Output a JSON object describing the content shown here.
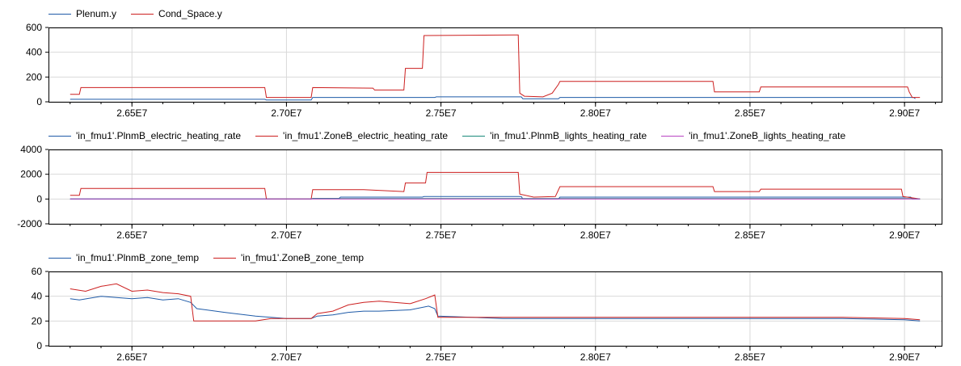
{
  "chart_data": [
    {
      "type": "line",
      "grid": true,
      "legend_placement": "top-left",
      "xlim": [
        26230000,
        29120000
      ],
      "ylim": [
        0,
        600
      ],
      "yticks": [
        0,
        200,
        400,
        600
      ],
      "ytick_labels": [
        "0",
        "200",
        "400",
        "600"
      ],
      "xticks": [
        26500000,
        27000000,
        27500000,
        28000000,
        28500000,
        29000000
      ],
      "xtick_labels": [
        "2.65E7",
        "2.70E7",
        "2.75E7",
        "2.80E7",
        "2.85E7",
        "2.90E7"
      ],
      "series": [
        {
          "name": "Plenum.y",
          "color": "#1f5ba8",
          "points": [
            [
              26300000,
              20
            ],
            [
              26930000,
              20
            ],
            [
              26935000,
              15
            ],
            [
              27080000,
              15
            ],
            [
              27085000,
              35
            ],
            [
              27480000,
              35
            ],
            [
              27485000,
              40
            ],
            [
              27760000,
              40
            ],
            [
              27765000,
              25
            ],
            [
              27880000,
              25
            ],
            [
              27885000,
              35
            ],
            [
              29030000,
              35
            ],
            [
              29035000,
              25
            ]
          ]
        },
        {
          "name": "Cond_Space.y",
          "color": "#cc1f1f",
          "points": [
            [
              26300000,
              60
            ],
            [
              26330000,
              60
            ],
            [
              26335000,
              115
            ],
            [
              26930000,
              115
            ],
            [
              26935000,
              35
            ],
            [
              27080000,
              35
            ],
            [
              27085000,
              115
            ],
            [
              27280000,
              110
            ],
            [
              27285000,
              95
            ],
            [
              27380000,
              95
            ],
            [
              27385000,
              270
            ],
            [
              27440000,
              270
            ],
            [
              27445000,
              535
            ],
            [
              27750000,
              540
            ],
            [
              27755000,
              70
            ],
            [
              27770000,
              45
            ],
            [
              27830000,
              40
            ],
            [
              27860000,
              70
            ],
            [
              27880000,
              140
            ],
            [
              27885000,
              165
            ],
            [
              28380000,
              165
            ],
            [
              28385000,
              80
            ],
            [
              28530000,
              80
            ],
            [
              28535000,
              120
            ],
            [
              29010000,
              120
            ],
            [
              29015000,
              80
            ],
            [
              29025000,
              35
            ],
            [
              29050000,
              35
            ]
          ]
        }
      ]
    },
    {
      "type": "line",
      "grid": true,
      "legend_placement": "top-left",
      "xlim": [
        26230000,
        29120000
      ],
      "ylim": [
        -2000,
        4000
      ],
      "yticks": [
        -2000,
        0,
        2000,
        4000
      ],
      "ytick_labels": [
        "-2000",
        "0",
        "2000",
        "4000"
      ],
      "xticks": [
        26500000,
        27000000,
        27500000,
        28000000,
        28500000,
        29000000
      ],
      "xtick_labels": [
        "2.65E7",
        "2.70E7",
        "2.75E7",
        "2.80E7",
        "2.85E7",
        "2.90E7"
      ],
      "series": [
        {
          "name": "'in_fmu1'.PlnmB_electric_heating_rate",
          "color": "#1f5ba8",
          "points": [
            [
              26300000,
              0
            ],
            [
              27080000,
              0
            ],
            [
              27085000,
              50
            ],
            [
              27170000,
              50
            ],
            [
              27175000,
              150
            ],
            [
              27440000,
              150
            ],
            [
              27445000,
              200
            ],
            [
              27760000,
              200
            ],
            [
              27765000,
              0
            ],
            [
              27880000,
              0
            ],
            [
              27885000,
              150
            ],
            [
              29020000,
              150
            ],
            [
              29025000,
              0
            ],
            [
              29050000,
              0
            ]
          ]
        },
        {
          "name": "'in_fmu1'.ZoneB_electric_heating_rate",
          "color": "#cc1f1f",
          "points": [
            [
              26300000,
              300
            ],
            [
              26330000,
              300
            ],
            [
              26335000,
              850
            ],
            [
              26930000,
              850
            ],
            [
              26935000,
              0
            ],
            [
              27080000,
              0
            ],
            [
              27085000,
              750
            ],
            [
              27250000,
              750
            ],
            [
              27380000,
              600
            ],
            [
              27385000,
              1300
            ],
            [
              27450000,
              1300
            ],
            [
              27455000,
              2150
            ],
            [
              27750000,
              2150
            ],
            [
              27755000,
              400
            ],
            [
              27800000,
              150
            ],
            [
              27870000,
              200
            ],
            [
              27885000,
              1000
            ],
            [
              28380000,
              1000
            ],
            [
              28385000,
              600
            ],
            [
              28530000,
              600
            ],
            [
              28535000,
              800
            ],
            [
              28990000,
              800
            ],
            [
              28995000,
              200
            ],
            [
              29050000,
              0
            ]
          ]
        },
        {
          "name": "'in_fmu1'.PlnmB_lights_heating_rate",
          "color": "#1b8a7a",
          "points": [
            [
              26300000,
              0
            ],
            [
              27080000,
              0
            ],
            [
              27085000,
              40
            ],
            [
              29020000,
              40
            ],
            [
              29025000,
              0
            ],
            [
              29050000,
              0
            ]
          ]
        },
        {
          "name": "'in_fmu1'.ZoneB_lights_heating_rate",
          "color": "#b845c2",
          "points": [
            [
              26300000,
              0
            ],
            [
              29050000,
              0
            ]
          ]
        }
      ]
    },
    {
      "type": "line",
      "grid": true,
      "legend_placement": "top-left",
      "xlim": [
        26230000,
        29120000
      ],
      "ylim": [
        0,
        60
      ],
      "yticks": [
        0,
        20,
        40,
        60
      ],
      "ytick_labels": [
        "0",
        "20",
        "40",
        "60"
      ],
      "xticks": [
        26500000,
        27000000,
        27500000,
        28000000,
        28500000,
        29000000
      ],
      "xtick_labels": [
        "2.65E7",
        "2.70E7",
        "2.75E7",
        "2.80E7",
        "2.85E7",
        "2.90E7"
      ],
      "series": [
        {
          "name": "'in_fmu1'.PlnmB_zone_temp",
          "color": "#1f5ba8",
          "points": [
            [
              26300000,
              38
            ],
            [
              26330000,
              37
            ],
            [
              26400000,
              40
            ],
            [
              26450000,
              39
            ],
            [
              26500000,
              38
            ],
            [
              26550000,
              39
            ],
            [
              26600000,
              37
            ],
            [
              26650000,
              38
            ],
            [
              26690000,
              35
            ],
            [
              26710000,
              30
            ],
            [
              26800000,
              27
            ],
            [
              26900000,
              24
            ],
            [
              27000000,
              22
            ],
            [
              27080000,
              22
            ],
            [
              27100000,
              24
            ],
            [
              27150000,
              25
            ],
            [
              27200000,
              27
            ],
            [
              27250000,
              28
            ],
            [
              27300000,
              28
            ],
            [
              27400000,
              29
            ],
            [
              27460000,
              32
            ],
            [
              27480000,
              30
            ],
            [
              27490000,
              24
            ],
            [
              27600000,
              23
            ],
            [
              27700000,
              22
            ],
            [
              27900000,
              22
            ],
            [
              28200000,
              22
            ],
            [
              28500000,
              22
            ],
            [
              28800000,
              22
            ],
            [
              29000000,
              21
            ],
            [
              29050000,
              20
            ]
          ]
        },
        {
          "name": "'in_fmu1'.ZoneB_zone_temp",
          "color": "#cc1f1f",
          "points": [
            [
              26300000,
              46
            ],
            [
              26350000,
              44
            ],
            [
              26400000,
              48
            ],
            [
              26450000,
              50
            ],
            [
              26500000,
              44
            ],
            [
              26550000,
              45
            ],
            [
              26600000,
              43
            ],
            [
              26650000,
              42
            ],
            [
              26690000,
              40
            ],
            [
              26700000,
              20
            ],
            [
              26800000,
              20
            ],
            [
              26900000,
              20
            ],
            [
              26950000,
              22
            ],
            [
              27080000,
              22
            ],
            [
              27100000,
              26
            ],
            [
              27150000,
              28
            ],
            [
              27200000,
              33
            ],
            [
              27250000,
              35
            ],
            [
              27300000,
              36
            ],
            [
              27400000,
              34
            ],
            [
              27450000,
              38
            ],
            [
              27480000,
              41
            ],
            [
              27490000,
              23
            ],
            [
              27600000,
              23
            ],
            [
              27700000,
              23
            ],
            [
              27900000,
              23
            ],
            [
              28200000,
              23
            ],
            [
              28500000,
              23
            ],
            [
              28800000,
              23
            ],
            [
              29000000,
              22
            ],
            [
              29050000,
              21
            ]
          ]
        }
      ]
    }
  ]
}
